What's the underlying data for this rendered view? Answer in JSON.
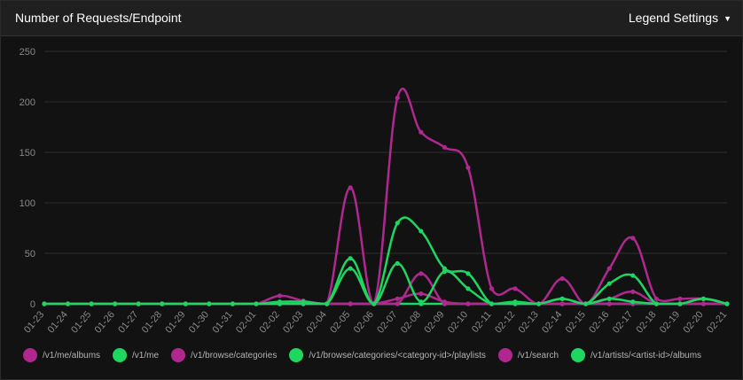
{
  "header": {
    "title": "Number of Requests/Endpoint",
    "legend_settings_label": "Legend Settings",
    "caret_icon": "caret-down-icon"
  },
  "colors": {
    "magenta": "#b0288f",
    "green": "#1ed760",
    "grid": "#2e2e2e",
    "tick_text": "#8a8a8a"
  },
  "chart_data": {
    "type": "line",
    "title": "Number of Requests/Endpoint",
    "xlabel": "",
    "ylabel": "",
    "ylim": [
      0,
      250
    ],
    "yticks": [
      0,
      50,
      100,
      150,
      200,
      250
    ],
    "grid": true,
    "legend_position": "bottom",
    "categories": [
      "01-23",
      "01-24",
      "01-25",
      "01-26",
      "01-27",
      "01-28",
      "01-29",
      "01-30",
      "01-31",
      "02-01",
      "02-02",
      "02-03",
      "02-04",
      "02-05",
      "02-06",
      "02-07",
      "02-08",
      "02-09",
      "02-10",
      "02-11",
      "02-12",
      "02-13",
      "02-14",
      "02-15",
      "02-16",
      "02-17",
      "02-18",
      "02-19",
      "02-20",
      "02-21"
    ],
    "series": [
      {
        "name": "/v1/me/albums",
        "color": "#b0288f",
        "values": [
          0,
          0,
          0,
          0,
          0,
          0,
          0,
          0,
          0,
          0,
          8,
          3,
          0,
          115,
          0,
          204,
          170,
          155,
          135,
          15,
          15,
          0,
          25,
          0,
          35,
          65,
          5,
          5,
          5,
          0
        ]
      },
      {
        "name": "/v1/me",
        "color": "#1ed760",
        "values": [
          0,
          0,
          0,
          0,
          0,
          0,
          0,
          0,
          0,
          0,
          0,
          0,
          0,
          0,
          0,
          0,
          0,
          0,
          0,
          0,
          0,
          0,
          0,
          0,
          0,
          0,
          0,
          0,
          0,
          0
        ]
      },
      {
        "name": "/v1/browse/categories",
        "color": "#b0288f",
        "values": [
          0,
          0,
          0,
          0,
          0,
          0,
          0,
          0,
          0,
          0,
          0,
          0,
          0,
          0,
          0,
          5,
          10,
          2,
          0,
          0,
          0,
          0,
          0,
          0,
          5,
          12,
          0,
          0,
          0,
          0
        ]
      },
      {
        "name": "/v1/browse/categories/<category-id>/playlists",
        "color": "#1ed760",
        "values": [
          0,
          0,
          0,
          0,
          0,
          0,
          0,
          0,
          0,
          0,
          2,
          2,
          0,
          45,
          0,
          80,
          72,
          35,
          30,
          0,
          2,
          0,
          5,
          0,
          20,
          28,
          0,
          0,
          5,
          0
        ]
      },
      {
        "name": "/v1/search",
        "color": "#b0288f",
        "values": [
          0,
          0,
          0,
          0,
          0,
          0,
          0,
          0,
          0,
          0,
          0,
          0,
          0,
          0,
          0,
          0,
          30,
          0,
          0,
          0,
          0,
          0,
          0,
          0,
          0,
          0,
          0,
          0,
          0,
          0
        ]
      },
      {
        "name": "/v1/artists/<artist-id>/albums",
        "color": "#1ed760",
        "values": [
          0,
          0,
          0,
          0,
          0,
          0,
          0,
          0,
          0,
          0,
          0,
          0,
          0,
          35,
          0,
          40,
          2,
          32,
          15,
          0,
          0,
          0,
          5,
          0,
          5,
          2,
          0,
          0,
          5,
          0
        ]
      }
    ]
  }
}
